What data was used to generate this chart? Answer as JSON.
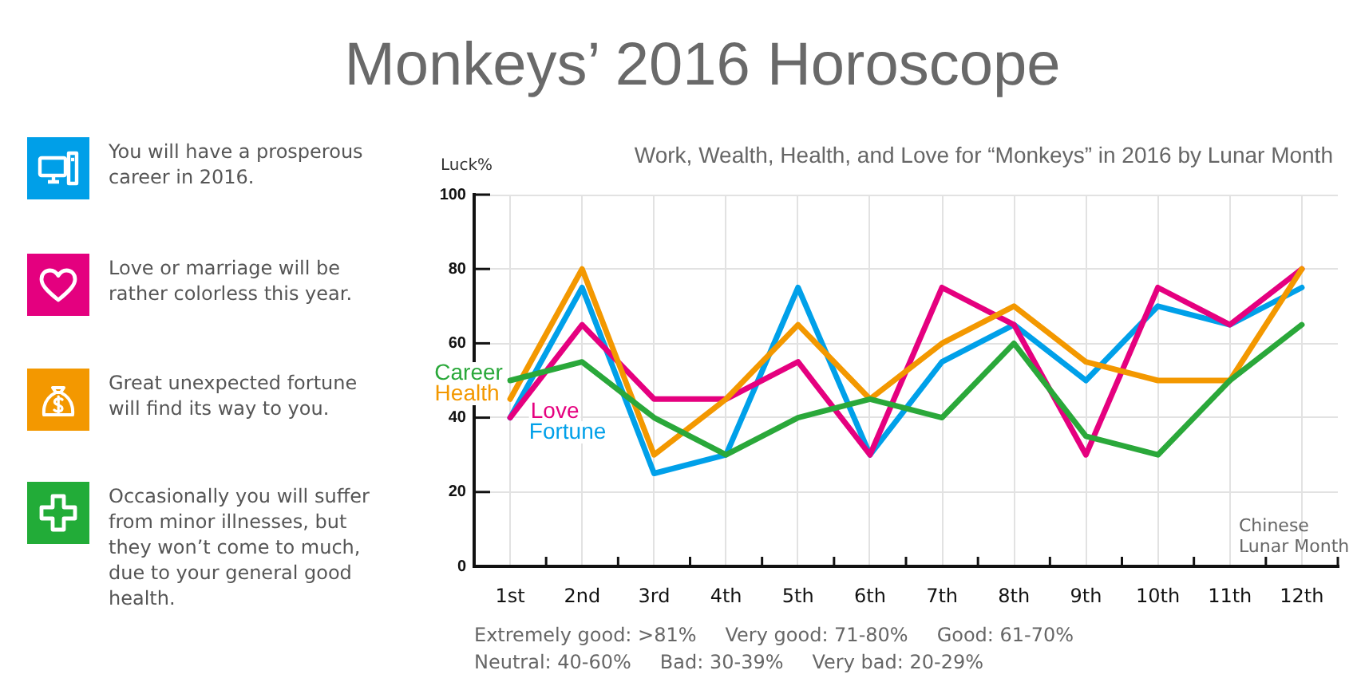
{
  "chart_data": {
    "type": "line",
    "title": "Monkeys’ 2016 Horoscope",
    "subtitle": "Work, Wealth, Health, and Love for “Monkeys” in 2016 by Lunar Month",
    "xlabel": "Chinese Lunar Month",
    "ylabel": "Luck%",
    "categories": [
      "1st",
      "2nd",
      "3rd",
      "4th",
      "5th",
      "6th",
      "7th",
      "8th",
      "9th",
      "10th",
      "11th",
      "12th"
    ],
    "series": [
      {
        "name": "Career",
        "color": "#2aa83a",
        "values": [
          50,
          55,
          40,
          30,
          40,
          45,
          40,
          60,
          35,
          30,
          50,
          65
        ]
      },
      {
        "name": "Health",
        "color": "#f39800",
        "values": [
          45,
          80,
          30,
          45,
          65,
          45,
          60,
          70,
          55,
          50,
          50,
          80
        ]
      },
      {
        "name": "Love",
        "color": "#e5007f",
        "values": [
          40,
          65,
          45,
          45,
          55,
          30,
          75,
          65,
          30,
          75,
          65,
          80
        ]
      },
      {
        "name": "Fortune",
        "color": "#00a0e9",
        "values": [
          40,
          75,
          25,
          30,
          75,
          30,
          55,
          65,
          50,
          70,
          65,
          75
        ]
      }
    ],
    "ylim": [
      0,
      100
    ],
    "yticks": [
      0,
      20,
      40,
      60,
      80,
      100
    ],
    "grid": true,
    "legend": false,
    "marker": "none",
    "line_style": "solid",
    "annotations": [
      "You will have a prosperous career in 2016.",
      "Love or marriage will be rather colorless this year.",
      "Great unexpected fortune will find its way to you.",
      "Occasionally you will suffer from minor illnesses, but they won’t come to much, due to your general good health.",
      "Extremely good: >81%",
      "Very good: 71-80%",
      "Good: 61-70%",
      "Neutral: 40-60%",
      "Bad: 30-39%",
      "Very bad: 20-29%"
    ]
  }
}
